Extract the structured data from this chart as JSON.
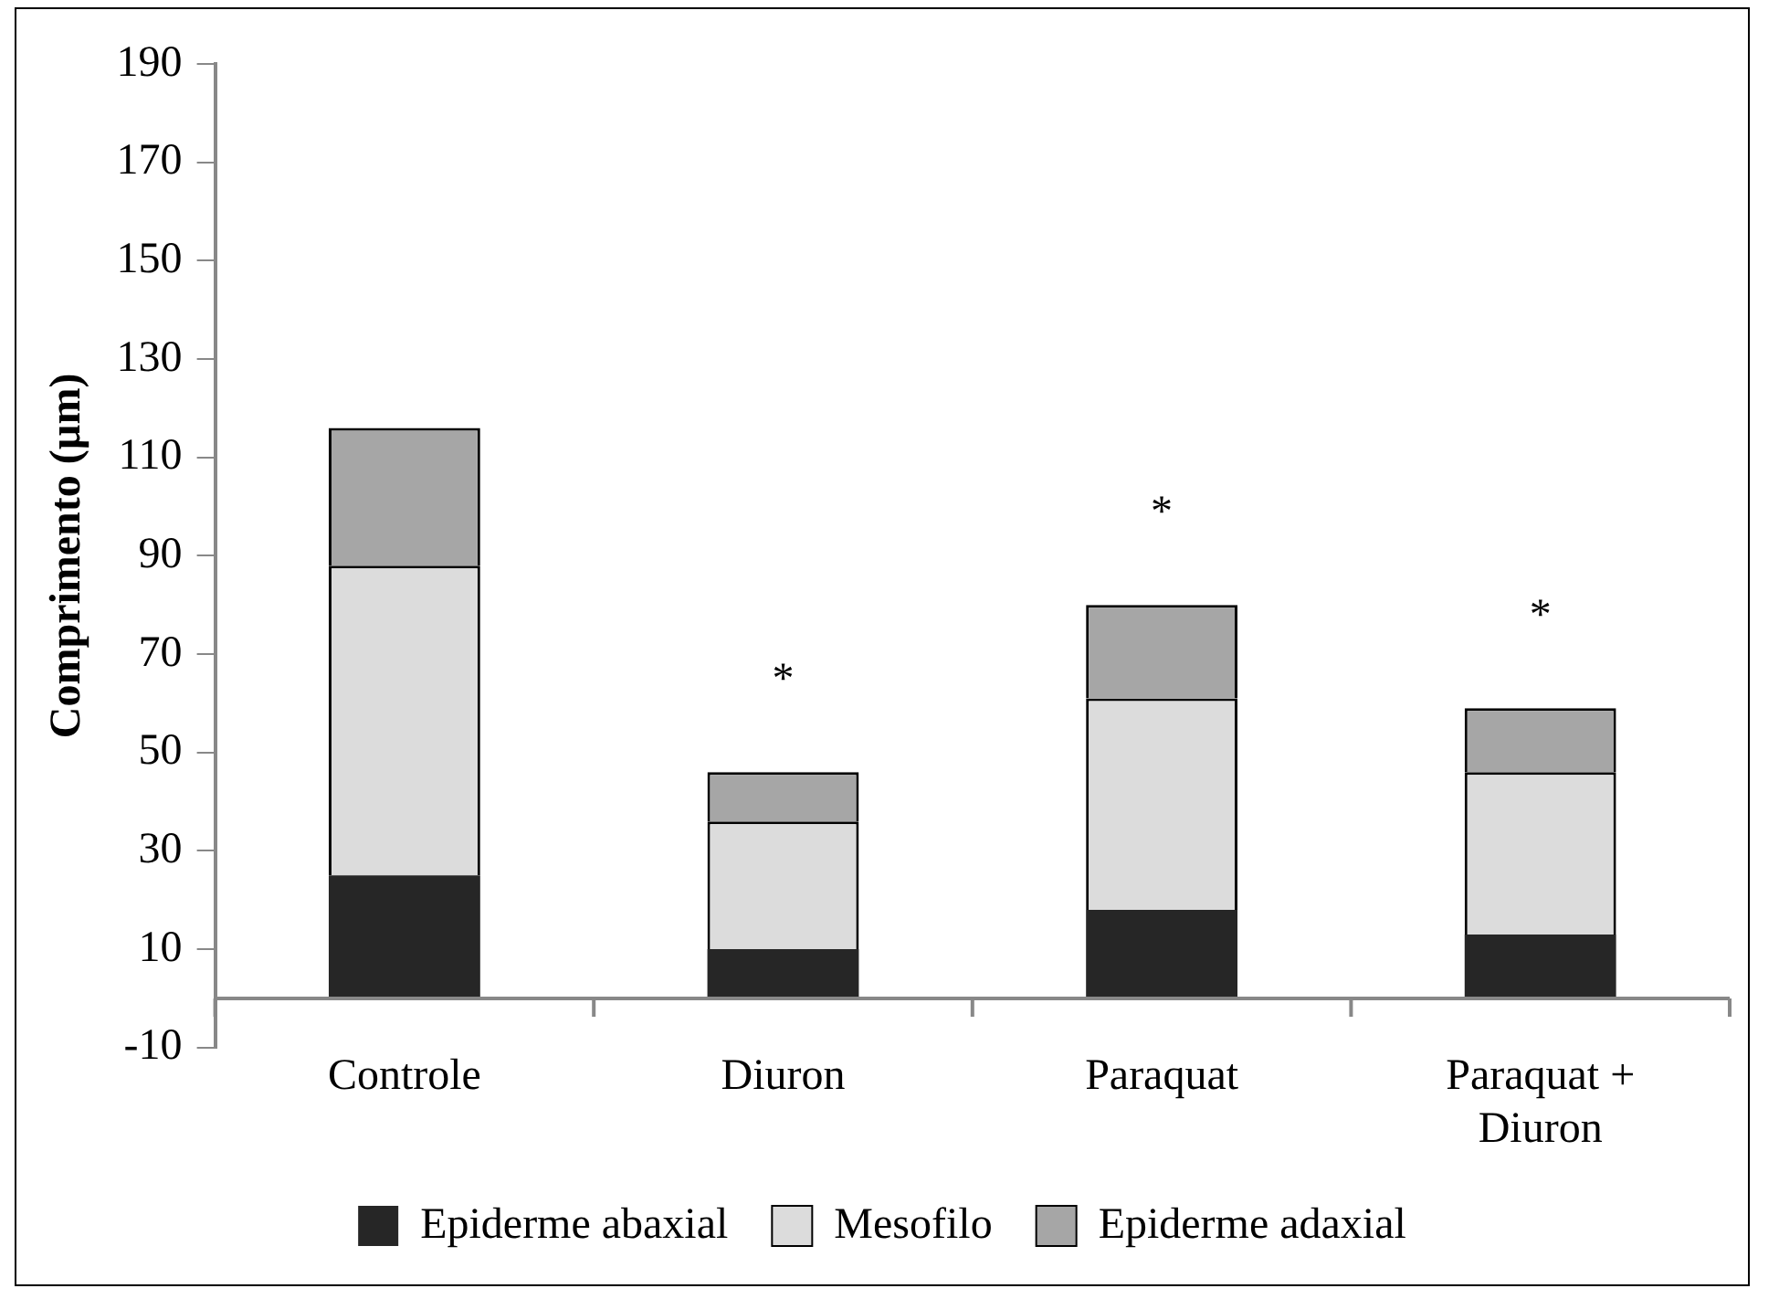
{
  "chart_data": {
    "type": "bar",
    "stacked": true,
    "ylabel": "Comprimento (µm)",
    "categories": [
      "Controle",
      "Diuron",
      "Paraquat",
      "Paraquat + Diuron"
    ],
    "series": [
      {
        "name": "Epiderme abaxial",
        "color": "#262626",
        "values": [
          25,
          10,
          18,
          13
        ]
      },
      {
        "name": "Mesofilo",
        "color": "#dcdcdc",
        "values": [
          63,
          26,
          43,
          33
        ]
      },
      {
        "name": "Epiderme adaxial",
        "color": "#a6a6a6",
        "values": [
          28,
          10,
          19,
          13
        ]
      }
    ],
    "ylim": [
      -10,
      190
    ],
    "yticks": [
      -10,
      10,
      30,
      50,
      70,
      90,
      110,
      130,
      150,
      170,
      190
    ],
    "grid": false,
    "legend": "bottom",
    "annotations": [
      {
        "text": "*",
        "x": "Diuron",
        "y": 46
      },
      {
        "text": "*",
        "x": "Paraquat",
        "y": 80
      },
      {
        "text": "*",
        "x": "Paraquat + Diuron",
        "y": 59
      }
    ]
  }
}
